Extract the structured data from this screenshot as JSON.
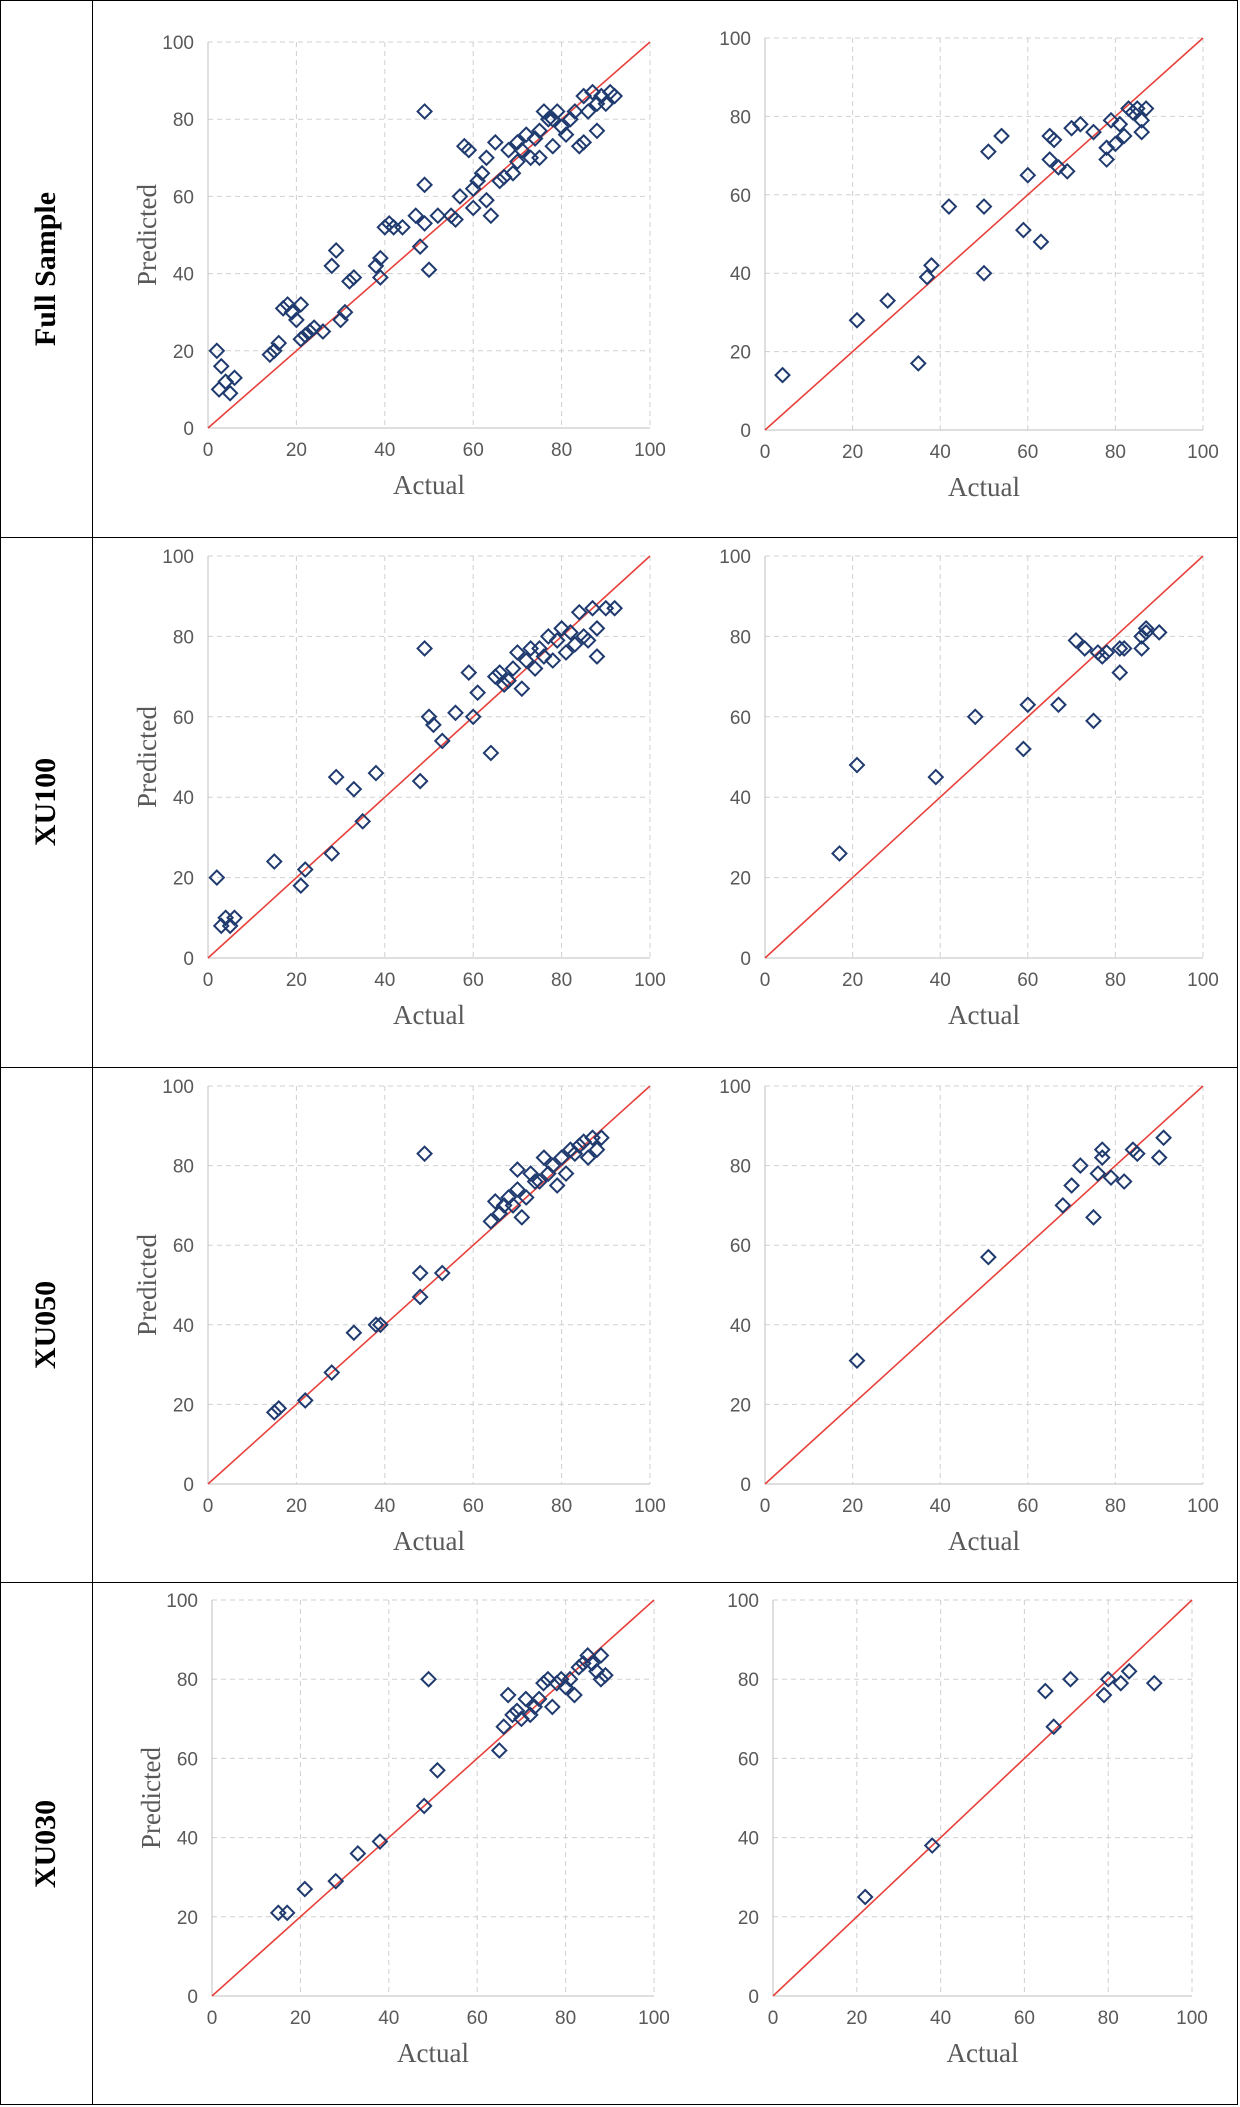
{
  "rows": [
    {
      "label": "Full Sample"
    },
    {
      "label": "XU100"
    },
    {
      "label": "XU050"
    },
    {
      "label": "XU030"
    }
  ],
  "colors": {
    "marker": "#1f3a6e",
    "line": "#e8413b",
    "grid": "#d0d0d0",
    "text": "#595959"
  },
  "chart_data": [
    {
      "type": "scatter",
      "panel": "full-sample-train",
      "xlabel": "Actual",
      "ylabel": "Predicted",
      "xlim": [
        0,
        100
      ],
      "ylim": [
        0,
        100
      ],
      "xticks": [
        0,
        20,
        40,
        60,
        80,
        100
      ],
      "yticks": [
        0,
        20,
        40,
        60,
        80,
        100
      ],
      "grid": true,
      "reference_line": [
        [
          0,
          0
        ],
        [
          100,
          100
        ]
      ],
      "points": [
        [
          2,
          20
        ],
        [
          3,
          16
        ],
        [
          2.5,
          10
        ],
        [
          4,
          12
        ],
        [
          5,
          9
        ],
        [
          6,
          13
        ],
        [
          14,
          19
        ],
        [
          15,
          20
        ],
        [
          16,
          22
        ],
        [
          17,
          31
        ],
        [
          18,
          32
        ],
        [
          19,
          30
        ],
        [
          20,
          28
        ],
        [
          21,
          32
        ],
        [
          21,
          23
        ],
        [
          22,
          24
        ],
        [
          23,
          25
        ],
        [
          24,
          26
        ],
        [
          26,
          25
        ],
        [
          28,
          42
        ],
        [
          29,
          46
        ],
        [
          30,
          28
        ],
        [
          31,
          30
        ],
        [
          32,
          38
        ],
        [
          33,
          39
        ],
        [
          38,
          42
        ],
        [
          39,
          44
        ],
        [
          39,
          39
        ],
        [
          40,
          52
        ],
        [
          41,
          53
        ],
        [
          42,
          52
        ],
        [
          44,
          52
        ],
        [
          47,
          55
        ],
        [
          48,
          47
        ],
        [
          49,
          53
        ],
        [
          49,
          63
        ],
        [
          50,
          41
        ],
        [
          49,
          82
        ],
        [
          52,
          55
        ],
        [
          55,
          55
        ],
        [
          56,
          54
        ],
        [
          57,
          60
        ],
        [
          58,
          73
        ],
        [
          59,
          72
        ],
        [
          60,
          62
        ],
        [
          60,
          57
        ],
        [
          61,
          64
        ],
        [
          62,
          66
        ],
        [
          63,
          70
        ],
        [
          63,
          59
        ],
        [
          64,
          55
        ],
        [
          65,
          74
        ],
        [
          66,
          64
        ],
        [
          67,
          65
        ],
        [
          68,
          72
        ],
        [
          69,
          66
        ],
        [
          70,
          74
        ],
        [
          70,
          69
        ],
        [
          71,
          72
        ],
        [
          72,
          76
        ],
        [
          73,
          70
        ],
        [
          74,
          75
        ],
        [
          75,
          77
        ],
        [
          75,
          70
        ],
        [
          76,
          82
        ],
        [
          77,
          80
        ],
        [
          78,
          80
        ],
        [
          78,
          73
        ],
        [
          79,
          82
        ],
        [
          80,
          78
        ],
        [
          81,
          76
        ],
        [
          82,
          80
        ],
        [
          83,
          82
        ],
        [
          84,
          73
        ],
        [
          85,
          74
        ],
        [
          85,
          86
        ],
        [
          86,
          82
        ],
        [
          87,
          87
        ],
        [
          88,
          84
        ],
        [
          88,
          77
        ],
        [
          89,
          86
        ],
        [
          90,
          84
        ],
        [
          91,
          87
        ],
        [
          92,
          86
        ]
      ]
    },
    {
      "type": "scatter",
      "panel": "full-sample-test",
      "xlabel": "Actual",
      "ylabel": "",
      "xlim": [
        0,
        100
      ],
      "ylim": [
        0,
        100
      ],
      "xticks": [
        0,
        20,
        40,
        60,
        80,
        100
      ],
      "yticks": [
        0,
        20,
        40,
        60,
        80,
        100
      ],
      "grid": true,
      "reference_line": [
        [
          0,
          0
        ],
        [
          100,
          100
        ]
      ],
      "points": [
        [
          4,
          14
        ],
        [
          21,
          28
        ],
        [
          28,
          33
        ],
        [
          35,
          17
        ],
        [
          37,
          39
        ],
        [
          38,
          42
        ],
        [
          42,
          57
        ],
        [
          50,
          40
        ],
        [
          50,
          57
        ],
        [
          51,
          71
        ],
        [
          54,
          75
        ],
        [
          59,
          51
        ],
        [
          60,
          65
        ],
        [
          63,
          48
        ],
        [
          65,
          69
        ],
        [
          65,
          75
        ],
        [
          66,
          74
        ],
        [
          67,
          67
        ],
        [
          69,
          66
        ],
        [
          70,
          77
        ],
        [
          72,
          78
        ],
        [
          75,
          76
        ],
        [
          78,
          72
        ],
        [
          78,
          69
        ],
        [
          79,
          79
        ],
        [
          80,
          73
        ],
        [
          81,
          78
        ],
        [
          82,
          75
        ],
        [
          83,
          82
        ],
        [
          84,
          81
        ],
        [
          85,
          82
        ],
        [
          86,
          76
        ],
        [
          86,
          79
        ],
        [
          87,
          82
        ]
      ]
    },
    {
      "type": "scatter",
      "panel": "xu100-train",
      "xlabel": "Actual",
      "ylabel": "Predicted",
      "xlim": [
        0,
        100
      ],
      "ylim": [
        0,
        100
      ],
      "xticks": [
        0,
        20,
        40,
        60,
        80,
        100
      ],
      "yticks": [
        0,
        20,
        40,
        60,
        80,
        100
      ],
      "grid": true,
      "reference_line": [
        [
          0,
          0
        ],
        [
          100,
          100
        ]
      ],
      "points": [
        [
          2,
          20
        ],
        [
          3,
          8
        ],
        [
          4,
          10
        ],
        [
          5,
          8
        ],
        [
          6,
          10
        ],
        [
          15,
          24
        ],
        [
          21,
          18
        ],
        [
          22,
          22
        ],
        [
          28,
          26
        ],
        [
          29,
          45
        ],
        [
          33,
          42
        ],
        [
          35,
          34
        ],
        [
          38,
          46
        ],
        [
          48,
          44
        ],
        [
          49,
          77
        ],
        [
          50,
          60
        ],
        [
          51,
          58
        ],
        [
          53,
          54
        ],
        [
          56,
          61
        ],
        [
          59,
          71
        ],
        [
          60,
          60
        ],
        [
          61,
          66
        ],
        [
          64,
          51
        ],
        [
          65,
          70
        ],
        [
          66,
          71
        ],
        [
          67,
          68
        ],
        [
          68,
          69
        ],
        [
          69,
          72
        ],
        [
          70,
          76
        ],
        [
          71,
          67
        ],
        [
          72,
          74
        ],
        [
          73,
          77
        ],
        [
          74,
          72
        ],
        [
          75,
          77
        ],
        [
          76,
          75
        ],
        [
          77,
          80
        ],
        [
          78,
          74
        ],
        [
          79,
          79
        ],
        [
          80,
          82
        ],
        [
          81,
          76
        ],
        [
          82,
          81
        ],
        [
          83,
          78
        ],
        [
          84,
          86
        ],
        [
          85,
          80
        ],
        [
          86,
          79
        ],
        [
          87,
          87
        ],
        [
          88,
          75
        ],
        [
          88,
          82
        ],
        [
          90,
          87
        ],
        [
          92,
          87
        ]
      ]
    },
    {
      "type": "scatter",
      "panel": "xu100-test",
      "xlabel": "Actual",
      "ylabel": "",
      "xlim": [
        0,
        100
      ],
      "ylim": [
        0,
        100
      ],
      "xticks": [
        0,
        20,
        40,
        60,
        80,
        100
      ],
      "yticks": [
        0,
        20,
        40,
        60,
        80,
        100
      ],
      "grid": true,
      "reference_line": [
        [
          0,
          0
        ],
        [
          100,
          100
        ]
      ],
      "points": [
        [
          17,
          26
        ],
        [
          21,
          48
        ],
        [
          39,
          45
        ],
        [
          48,
          60
        ],
        [
          59,
          52
        ],
        [
          60,
          63
        ],
        [
          67,
          63
        ],
        [
          71,
          79
        ],
        [
          73,
          77
        ],
        [
          75,
          59
        ],
        [
          76,
          76
        ],
        [
          77,
          75
        ],
        [
          78,
          76
        ],
        [
          81,
          77
        ],
        [
          82,
          77
        ],
        [
          81,
          71
        ],
        [
          86,
          77
        ],
        [
          86,
          80
        ],
        [
          87,
          81
        ],
        [
          87,
          82
        ],
        [
          90,
          81
        ]
      ]
    },
    {
      "type": "scatter",
      "panel": "xu050-train",
      "xlabel": "Actual",
      "ylabel": "Predicted",
      "xlim": [
        0,
        100
      ],
      "ylim": [
        0,
        100
      ],
      "xticks": [
        0,
        20,
        40,
        60,
        80,
        100
      ],
      "yticks": [
        0,
        20,
        40,
        60,
        80,
        100
      ],
      "grid": true,
      "reference_line": [
        [
          0,
          0
        ],
        [
          100,
          100
        ]
      ],
      "points": [
        [
          15,
          18
        ],
        [
          16,
          19
        ],
        [
          22,
          21
        ],
        [
          28,
          28
        ],
        [
          33,
          38
        ],
        [
          38,
          40
        ],
        [
          39,
          40
        ],
        [
          48,
          53
        ],
        [
          48,
          47
        ],
        [
          49,
          83
        ],
        [
          53,
          53
        ],
        [
          64,
          66
        ],
        [
          65,
          71
        ],
        [
          66,
          68
        ],
        [
          67,
          70
        ],
        [
          68,
          72
        ],
        [
          69,
          70
        ],
        [
          70,
          74
        ],
        [
          70,
          79
        ],
        [
          71,
          67
        ],
        [
          72,
          72
        ],
        [
          73,
          78
        ],
        [
          74,
          76
        ],
        [
          75,
          76
        ],
        [
          76,
          82
        ],
        [
          77,
          78
        ],
        [
          78,
          80
        ],
        [
          79,
          75
        ],
        [
          80,
          82
        ],
        [
          81,
          78
        ],
        [
          82,
          84
        ],
        [
          83,
          83
        ],
        [
          84,
          85
        ],
        [
          85,
          86
        ],
        [
          86,
          82
        ],
        [
          87,
          87
        ],
        [
          88,
          84
        ],
        [
          89,
          87
        ]
      ]
    },
    {
      "type": "scatter",
      "panel": "xu050-test",
      "xlabel": "Actual",
      "ylabel": "",
      "xlim": [
        0,
        100
      ],
      "ylim": [
        0,
        100
      ],
      "xticks": [
        0,
        20,
        40,
        60,
        80,
        100
      ],
      "yticks": [
        0,
        20,
        40,
        60,
        80,
        100
      ],
      "grid": true,
      "reference_line": [
        [
          0,
          0
        ],
        [
          100,
          100
        ]
      ],
      "points": [
        [
          21,
          31
        ],
        [
          51,
          57
        ],
        [
          68,
          70
        ],
        [
          70,
          75
        ],
        [
          72,
          80
        ],
        [
          75,
          67
        ],
        [
          76,
          78
        ],
        [
          77,
          82
        ],
        [
          77,
          84
        ],
        [
          79,
          77
        ],
        [
          82,
          76
        ],
        [
          84,
          84
        ],
        [
          85,
          83
        ],
        [
          90,
          82
        ],
        [
          91,
          87
        ]
      ]
    },
    {
      "type": "scatter",
      "panel": "xu030-train",
      "xlabel": "Actual",
      "ylabel": "Predicted",
      "xlim": [
        0,
        100
      ],
      "ylim": [
        0,
        100
      ],
      "xticks": [
        0,
        20,
        40,
        60,
        80,
        100
      ],
      "yticks": [
        0,
        20,
        40,
        60,
        80,
        100
      ],
      "grid": true,
      "reference_line": [
        [
          0,
          0
        ],
        [
          100,
          100
        ]
      ],
      "points": [
        [
          15,
          21
        ],
        [
          17,
          21
        ],
        [
          21,
          27
        ],
        [
          28,
          29
        ],
        [
          33,
          36
        ],
        [
          38,
          39
        ],
        [
          48,
          48
        ],
        [
          49,
          80
        ],
        [
          51,
          57
        ],
        [
          65,
          62
        ],
        [
          66,
          68
        ],
        [
          67,
          76
        ],
        [
          68,
          71
        ],
        [
          69,
          72
        ],
        [
          70,
          70
        ],
        [
          71,
          75
        ],
        [
          72,
          71
        ],
        [
          73,
          73
        ],
        [
          74,
          75
        ],
        [
          75,
          79
        ],
        [
          76,
          80
        ],
        [
          77,
          73
        ],
        [
          78,
          79
        ],
        [
          79,
          80
        ],
        [
          80,
          78
        ],
        [
          81,
          80
        ],
        [
          82,
          76
        ],
        [
          83,
          83
        ],
        [
          84,
          84
        ],
        [
          85,
          86
        ],
        [
          86,
          84
        ],
        [
          87,
          82
        ],
        [
          88,
          80
        ],
        [
          88,
          86
        ],
        [
          89,
          81
        ]
      ]
    },
    {
      "type": "scatter",
      "panel": "xu030-test",
      "xlabel": "Actual",
      "ylabel": "",
      "xlim": [
        0,
        100
      ],
      "ylim": [
        0,
        100
      ],
      "xticks": [
        0,
        20,
        40,
        60,
        80,
        100
      ],
      "yticks": [
        0,
        20,
        40,
        60,
        80,
        100
      ],
      "grid": true,
      "reference_line": [
        [
          0,
          0
        ],
        [
          100,
          100
        ]
      ],
      "points": [
        [
          22,
          25
        ],
        [
          38,
          38
        ],
        [
          65,
          77
        ],
        [
          67,
          68
        ],
        [
          71,
          80
        ],
        [
          79,
          76
        ],
        [
          80,
          80
        ],
        [
          83,
          79
        ],
        [
          85,
          82
        ],
        [
          91,
          79
        ]
      ]
    }
  ]
}
